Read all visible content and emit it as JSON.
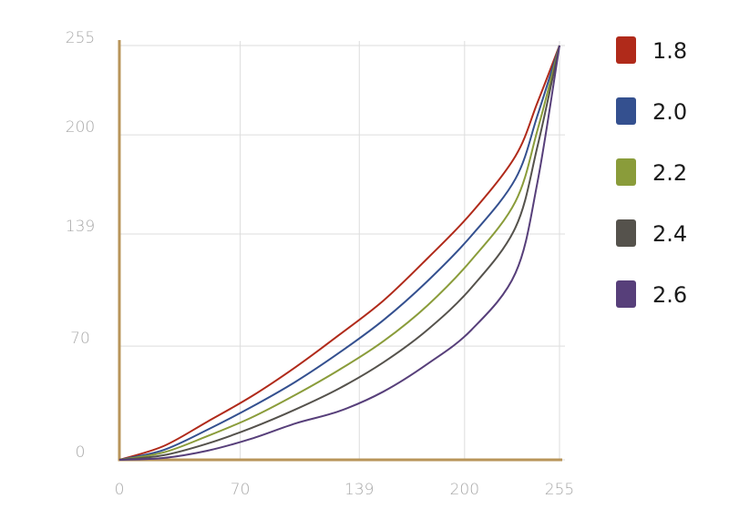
{
  "chart_data": {
    "type": "line",
    "x": [
      0,
      25.5,
      51,
      76.5,
      102,
      127.5,
      153,
      178.5,
      204,
      229.5,
      242.25,
      255
    ],
    "series": [
      {
        "name": "1.8",
        "color": "#b02a1a",
        "values": [
          0,
          8.4,
          23.5,
          39,
          57,
          77,
          98,
          124,
          152,
          187,
          220,
          255
        ]
      },
      {
        "name": "2.0",
        "color": "#34508f",
        "values": [
          0,
          6,
          18.5,
          32.5,
          48,
          66,
          86,
          110,
          138,
          173,
          212,
          255
        ]
      },
      {
        "name": "2.2",
        "color": "#8a9c3a",
        "values": [
          0,
          4.5,
          14.6,
          26,
          40,
          55.5,
          73,
          95,
          123,
          159,
          203,
          255
        ]
      },
      {
        "name": "2.4",
        "color": "#55524c",
        "values": [
          0,
          2.8,
          10,
          19.6,
          31,
          44,
          60,
          80,
          106,
          143,
          193,
          255
        ]
      },
      {
        "name": "2.6",
        "color": "#573f7a",
        "values": [
          0,
          1.1,
          5.6,
          13,
          22.4,
          30,
          42,
          59,
          80,
          115,
          171,
          255
        ]
      }
    ],
    "xlim": [
      0,
      255
    ],
    "ylim": [
      0,
      255
    ],
    "xticks": [
      0,
      70,
      139,
      200,
      255
    ],
    "yticks": [
      0,
      70,
      139,
      200,
      255
    ],
    "grid": true,
    "legend": "right"
  }
}
